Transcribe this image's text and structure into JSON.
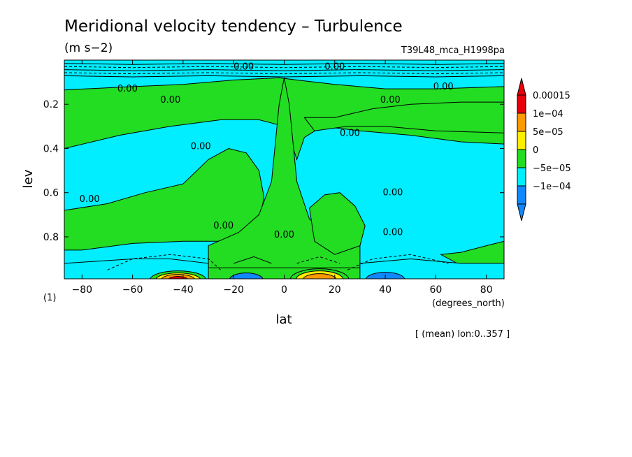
{
  "chart_data": {
    "type": "heatmap",
    "title": "Meridional velocity tendency – Turbulence",
    "units": "(m s−2)",
    "experiment": "T39L48_mca_H1998pa",
    "xlabel": "lat",
    "xunits": "(degrees_north)",
    "ylabel": "lev",
    "yunits": "(1)",
    "mean_note": "[ (mean) lon:0..357 ]",
    "xlim": [
      -87,
      87
    ],
    "ylim": [
      0.0,
      0.99
    ],
    "y_inverted": true,
    "x_ticks": [
      {
        "value": -80,
        "label": "−80"
      },
      {
        "value": -60,
        "label": "−60"
      },
      {
        "value": -40,
        "label": "−40"
      },
      {
        "value": -20,
        "label": "−20"
      },
      {
        "value": 0,
        "label": "0"
      },
      {
        "value": 20,
        "label": "20"
      },
      {
        "value": 40,
        "label": "40"
      },
      {
        "value": 60,
        "label": "60"
      },
      {
        "value": 80,
        "label": "80"
      }
    ],
    "y_ticks": [
      {
        "value": 0.2,
        "label": "0.2"
      },
      {
        "value": 0.4,
        "label": "0.4"
      },
      {
        "value": 0.6,
        "label": "0.6"
      },
      {
        "value": 0.8,
        "label": "0.8"
      }
    ],
    "colorbar": {
      "labels": [
        "0.00015",
        "1e−04",
        "5e−05",
        "0",
        "−5e−05",
        "−1e−04"
      ],
      "colors": [
        "#ffffff",
        "#e8000b",
        "#ff9900",
        "#ffee00",
        "#22dd22",
        "#00eeff",
        "#1188ff",
        "#ffffff"
      ],
      "extend": "both"
    },
    "palette": {
      "green": "#22dd22",
      "cyan": "#00eeff",
      "blue": "#1188ff",
      "yellow": "#ffee00",
      "orange": "#ff9900",
      "red": "#e8000b"
    },
    "contour_labels": [
      {
        "text": "0.00",
        "lat": -62,
        "lev": 0.13
      },
      {
        "text": "0.00",
        "lat": -45,
        "lev": 0.18
      },
      {
        "text": "0.00",
        "lat": -33,
        "lev": 0.39
      },
      {
        "text": "0.00",
        "lat": -77,
        "lev": 0.63
      },
      {
        "text": "0.00",
        "lat": -24,
        "lev": 0.75
      },
      {
        "text": "0.00",
        "lat": 0,
        "lev": 0.79
      },
      {
        "text": "0.00",
        "lat": 42,
        "lev": 0.18
      },
      {
        "text": "0.00",
        "lat": 26,
        "lev": 0.33
      },
      {
        "text": "0.00",
        "lat": 43,
        "lev": 0.6
      },
      {
        "text": "0.00",
        "lat": 43,
        "lev": 0.78
      },
      {
        "text": "0.00",
        "lat": -16,
        "lev": 0.03
      },
      {
        "text": "0.00",
        "lat": 63,
        "lev": 0.12
      },
      {
        "text": "0.00",
        "lat": 20,
        "lev": 0.03
      }
    ]
  }
}
